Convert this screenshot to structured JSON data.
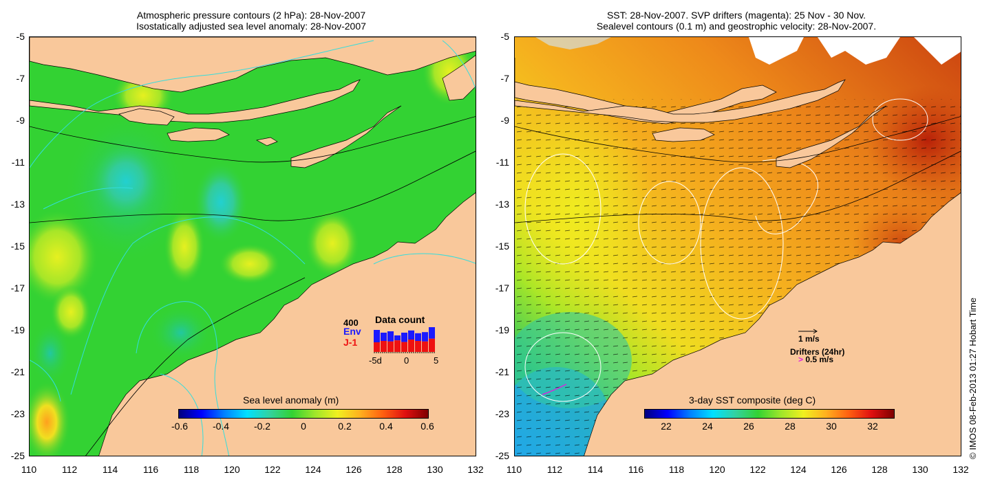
{
  "left_panel": {
    "title_line1": "Atmospheric pressure contours (2 hPa): 28-Nov-2007",
    "title_line2": "Isostatically adjusted sea level anomaly: 28-Nov-2007",
    "colorbar": {
      "label": "Sea level anomaly (m)",
      "ticks": [
        "-0.6",
        "-0.4",
        "-0.2",
        "0",
        "0.2",
        "0.4",
        "0.6"
      ],
      "min": -0.6,
      "max": 0.6
    },
    "data_count": {
      "title": "Data count",
      "max_label": "400",
      "env_label": "Env",
      "j1_label": "J-1",
      "x_min": "-5d",
      "x_mid": "0",
      "x_max": "5",
      "env_color": "#1a1aff",
      "j1_color": "#ee1111",
      "env_counts": [
        0.8,
        0.7,
        0.75,
        0.6,
        0.7,
        0.78,
        0.68,
        0.72,
        0.9
      ],
      "j1_counts": [
        0.35,
        0.4,
        0.38,
        0.42,
        0.36,
        0.45,
        0.4,
        0.38,
        0.48
      ]
    }
  },
  "right_panel": {
    "title_line1": "SST: 28-Nov-2007. SVP drifters (magenta): 25 Nov - 30 Nov.",
    "title_line2": "Sealevel contours (0.1 m) and geostrophic velocity: 28-Nov-2007.",
    "colorbar": {
      "label": "3-day SST composite (deg C)",
      "ticks": [
        "22",
        "24",
        "26",
        "28",
        "30",
        "32"
      ],
      "min": 21,
      "max": 33
    },
    "velocity_scale_label": "1 m/s",
    "drifters_label": "Drifters (24hr)",
    "drifters_speed_label": "0.5 m/s",
    "drifters_marker": ">"
  },
  "axes": {
    "lat_ticks": [
      "-5",
      "-7",
      "-9",
      "-11",
      "-13",
      "-15",
      "-17",
      "-19",
      "-21",
      "-23",
      "-25"
    ],
    "lon_ticks": [
      "110",
      "112",
      "114",
      "116",
      "118",
      "120",
      "122",
      "124",
      "126",
      "128",
      "130",
      "132"
    ]
  },
  "credit": "© IMOS 08-Feb-2013 01:27 Hobart Time",
  "colors": {
    "land": "#f9c89b",
    "ocean_left_base": "#33d233",
    "ocean_right_base": "#ee9a1e",
    "contour_cyan": "#33dddd",
    "drifter_magenta": "#dd22dd"
  }
}
